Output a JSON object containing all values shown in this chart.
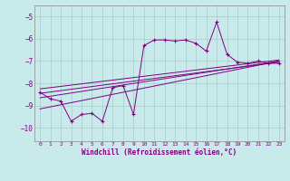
{
  "xlabel": "Windchill (Refroidissement éolien,°C)",
  "bg_color": "#c8eaea",
  "line_color": "#800080",
  "grid_color": "#a8cccc",
  "xlim": [
    -0.5,
    23.5
  ],
  "ylim": [
    -10.6,
    -4.5
  ],
  "yticks": [
    -10,
    -9,
    -8,
    -7,
    -6,
    -5
  ],
  "xticks": [
    0,
    1,
    2,
    3,
    4,
    5,
    6,
    7,
    8,
    9,
    10,
    11,
    12,
    13,
    14,
    15,
    16,
    17,
    18,
    19,
    20,
    21,
    22,
    23
  ],
  "data_x": [
    0,
    1,
    2,
    3,
    4,
    5,
    6,
    7,
    8,
    9,
    10,
    11,
    12,
    13,
    14,
    15,
    16,
    17,
    18,
    19,
    20,
    21,
    22,
    23
  ],
  "data_y": [
    -8.4,
    -8.7,
    -8.8,
    -9.7,
    -9.4,
    -9.35,
    -9.7,
    -8.2,
    -8.1,
    -9.4,
    -6.3,
    -6.05,
    -6.05,
    -6.1,
    -6.05,
    -6.2,
    -6.55,
    -5.25,
    -6.7,
    -7.05,
    -7.1,
    -7.0,
    -7.1,
    -7.1
  ],
  "trend_lines": [
    [
      -8.25,
      -6.95
    ],
    [
      -8.45,
      -7.05
    ],
    [
      -8.65,
      -7.0
    ],
    [
      -9.15,
      -7.0
    ]
  ]
}
